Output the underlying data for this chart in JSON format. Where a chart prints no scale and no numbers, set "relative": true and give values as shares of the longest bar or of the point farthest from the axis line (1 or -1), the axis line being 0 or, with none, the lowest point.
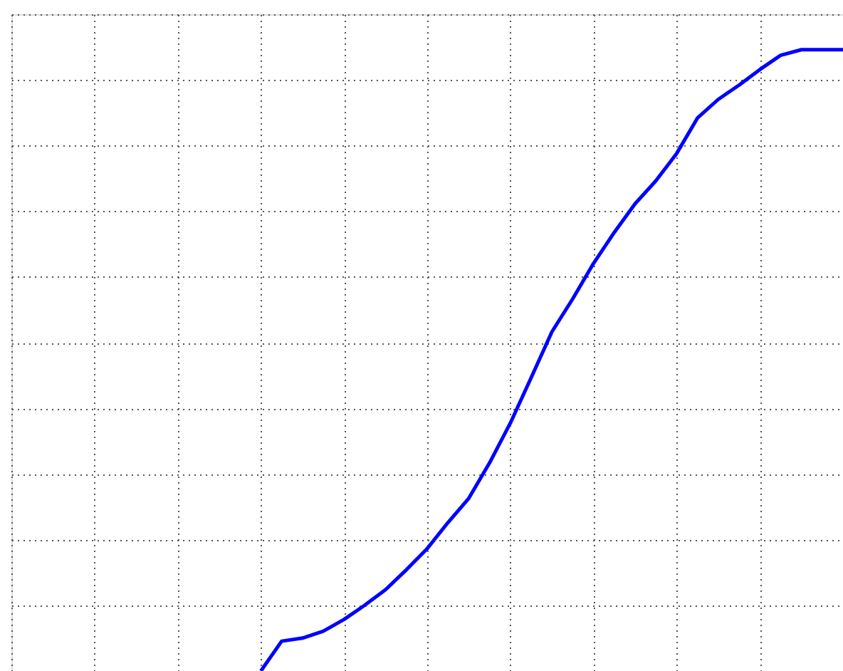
{
  "chart_data": {
    "type": "line",
    "relative": true,
    "categories": [
      null,
      null,
      null,
      null,
      null,
      null,
      null,
      null,
      null,
      null,
      null,
      null,
      null,
      null,
      null,
      null,
      null,
      null,
      null,
      null,
      null,
      null,
      null,
      null,
      null,
      null,
      null,
      null,
      null,
      null,
      null,
      null,
      null,
      null,
      null,
      null,
      null,
      null,
      null,
      null,
      null
    ],
    "series": [
      {
        "color": "#0000ff",
        "values": [
          null,
          null,
          null,
          null,
          null,
          null,
          null,
          null,
          null,
          null,
          null,
          null,
          0,
          0.048,
          0.053,
          0.064,
          0.083,
          0.106,
          0.131,
          0.163,
          0.197,
          0.239,
          0.278,
          0.335,
          0.399,
          0.472,
          0.546,
          0.599,
          0.656,
          0.706,
          0.752,
          0.789,
          0.833,
          0.89,
          0.92,
          0.943,
          0.968,
          0.991,
          1,
          1,
          1
        ]
      }
    ],
    "grid": true,
    "line_style": "solid",
    "marker": "none"
  }
}
